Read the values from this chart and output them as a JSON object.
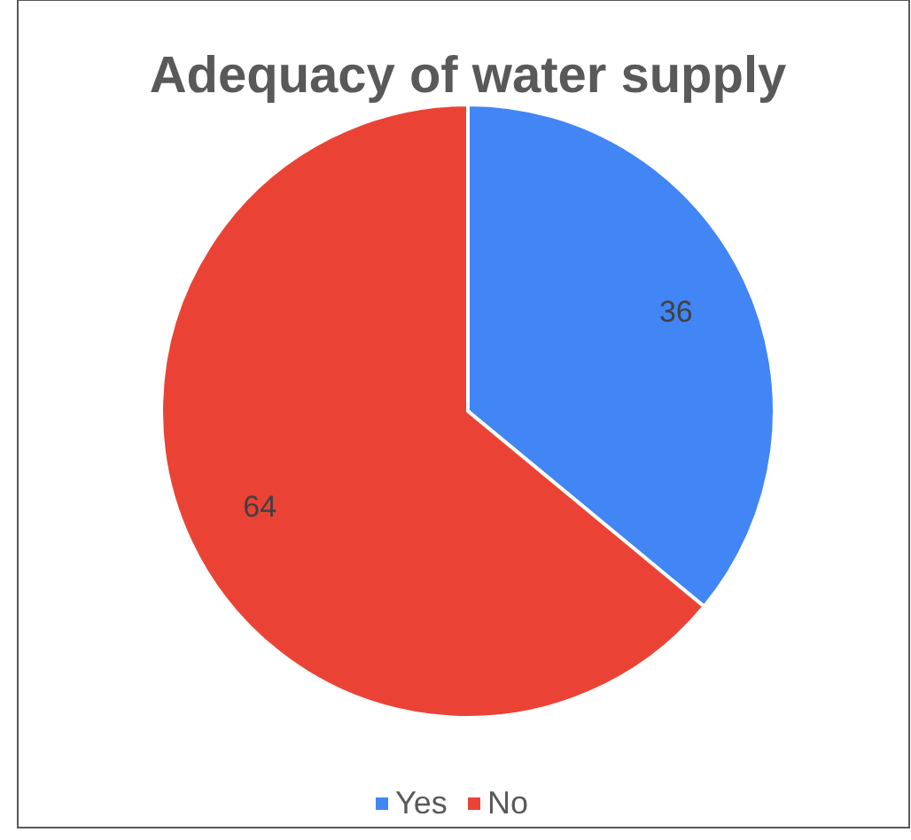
{
  "chart_data": {
    "type": "pie",
    "title": "Adequacy of water supply",
    "categories": [
      "Yes",
      "No"
    ],
    "values": [
      36,
      64
    ],
    "colors": [
      "#4285f4",
      "#ea4335"
    ],
    "data_labels": true,
    "legend": "bottom"
  }
}
